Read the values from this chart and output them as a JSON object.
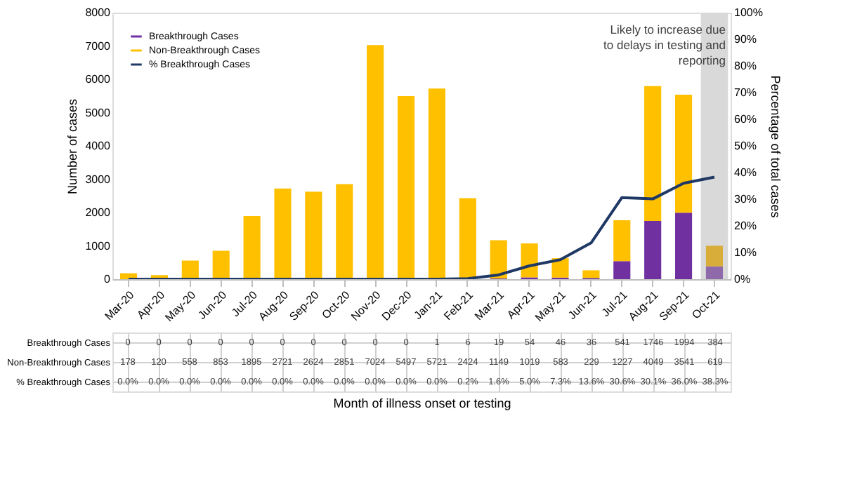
{
  "chart_data": {
    "type": "bar",
    "stacked": true,
    "categories": [
      "Mar-20",
      "Apr-20",
      "May-20",
      "Jun-20",
      "Jul-20",
      "Aug-20",
      "Sep-20",
      "Oct-20",
      "Nov-20",
      "Dec-20",
      "Jan-21",
      "Feb-21",
      "Mar-21",
      "Apr-21",
      "May-21",
      "Jun-21",
      "Jul-21",
      "Aug-21",
      "Sep-21",
      "Oct-21"
    ],
    "series": [
      {
        "name": "Breakthrough Cases",
        "color": "#7030a0",
        "colors": [
          "#7030a0",
          "#7030a0",
          "#7030a0",
          "#7030a0",
          "#7030a0",
          "#7030a0",
          "#7030a0",
          "#7030a0",
          "#7030a0",
          "#7030a0",
          "#7030a0",
          "#7030a0",
          "#7030a0",
          "#7030a0",
          "#7030a0",
          "#7030a0",
          "#7030a0",
          "#7030a0",
          "#7030a0",
          "#8e6aab"
        ],
        "values": [
          0,
          0,
          0,
          0,
          0,
          0,
          0,
          0,
          0,
          0,
          1,
          6,
          19,
          54,
          46,
          36,
          541,
          1746,
          1994,
          384
        ],
        "value_labels": [
          "0",
          "0",
          "0",
          "0",
          "0",
          "0",
          "0",
          "0",
          "0",
          "0",
          "1",
          "6",
          "19",
          "54",
          "46",
          "36",
          "541",
          "1746",
          "1994",
          "384"
        ]
      },
      {
        "name": "Non-Breakthrough Cases",
        "color": "#ffc000",
        "colors": [
          "#ffc000",
          "#ffc000",
          "#ffc000",
          "#ffc000",
          "#ffc000",
          "#ffc000",
          "#ffc000",
          "#ffc000",
          "#ffc000",
          "#ffc000",
          "#ffc000",
          "#ffc000",
          "#ffc000",
          "#ffc000",
          "#ffc000",
          "#ffc000",
          "#ffc000",
          "#ffc000",
          "#ffc000",
          "#d9ad3a"
        ],
        "values": [
          178,
          120,
          558,
          853,
          1895,
          2721,
          2624,
          2851,
          7024,
          5497,
          5721,
          2424,
          1149,
          1019,
          583,
          229,
          1227,
          4049,
          3541,
          619
        ],
        "value_labels": [
          "178",
          "120",
          "558",
          "853",
          "1895",
          "2721",
          "2624",
          "2851",
          "7024",
          "5497",
          "5721",
          "2424",
          "1149",
          "1019",
          "583",
          "229",
          "1227",
          "4049",
          "3541",
          "619"
        ]
      },
      {
        "name": "% Breakthrough Cases",
        "type": "line",
        "axis": "y2",
        "color": "#1f3864",
        "values": [
          0,
          0,
          0,
          0,
          0,
          0,
          0,
          0,
          0,
          0,
          0,
          0.2,
          1.6,
          5.0,
          7.3,
          13.6,
          30.6,
          30.1,
          36.0,
          38.3
        ],
        "value_labels": [
          "0.0%",
          "0.0%",
          "0.0%",
          "0.0%",
          "0.0%",
          "0.0%",
          "0.0%",
          "0.0%",
          "0.0%",
          "0.0%",
          "0.0%",
          "0.2%",
          "1.6%",
          "5.0%",
          "7.3%",
          "13.6%",
          "30.6%",
          "30.1%",
          "36.0%",
          "38.3%"
        ]
      }
    ],
    "ylim": [
      0,
      8000
    ],
    "yticks": [
      0,
      1000,
      2000,
      3000,
      4000,
      5000,
      6000,
      7000,
      8000
    ],
    "y2lim": [
      0,
      100
    ],
    "y2ticks": [
      {
        "value": 0,
        "label": "0%"
      },
      {
        "value": 10,
        "label": "10%"
      },
      {
        "value": 20,
        "label": "20%"
      },
      {
        "value": 30,
        "label": "30%"
      },
      {
        "value": 40,
        "label": "40%"
      },
      {
        "value": 50,
        "label": "50%"
      },
      {
        "value": 60,
        "label": "60%"
      },
      {
        "value": 70,
        "label": "70%"
      },
      {
        "value": 80,
        "label": "80%"
      },
      {
        "value": 90,
        "label": "90%"
      },
      {
        "value": 100,
        "label": "100%"
      }
    ],
    "ylabel": "Number of cases",
    "y2label": "Percentage of total cases",
    "annotations": [
      "Month of illness onset or testing"
    ],
    "bands": [
      {
        "axis": "x",
        "from": "Oct-21",
        "to": "Oct-21",
        "label": "Likely to increase due to delays in testing and reporting",
        "color": "#d9d9d9"
      }
    ],
    "legend": "top left",
    "grid": false,
    "marker": "none",
    "line_style": "solid"
  }
}
